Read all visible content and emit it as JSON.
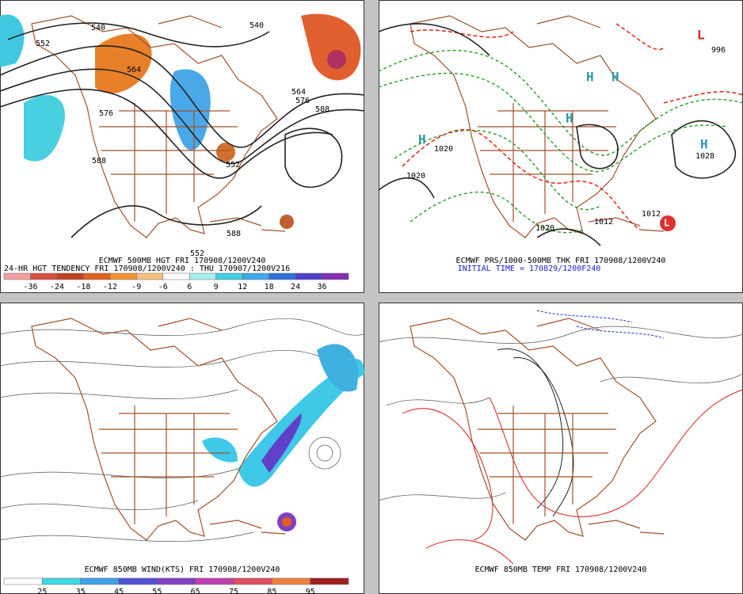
{
  "panels": [
    {
      "title": "ECMWF 500MB HGT FRI 170908/1200V240",
      "subtitle": "24-HR HGT TENDENCY FRI 170908/1200V240 : THU 170907/1200V216",
      "colorbar": [
        -36,
        -24,
        -18,
        -12,
        -9,
        -6,
        6,
        9,
        12,
        18,
        24,
        36
      ],
      "labels": [
        "552",
        "540",
        "564",
        "576",
        "588",
        "552",
        "540",
        "564",
        "576",
        "588",
        "588",
        "552"
      ]
    },
    {
      "title": "ECMWF PRS/1000-500MB THK FRI 170908/1200V240",
      "subtitle": "INITIAL TIME = 170829/1200F240",
      "labels": [
        "H",
        "H",
        "H",
        "H",
        "H",
        "L",
        "L",
        "1020",
        "1012",
        "1028",
        "996",
        "1020",
        "1012",
        "1020"
      ]
    },
    {
      "title": "ECMWF 850MB WIND(KTS) FRI 170908/1200V240",
      "colorbar": [
        25,
        35,
        45,
        55,
        65,
        75,
        85,
        95
      ]
    },
    {
      "title": "ECMWF 850MB TEMP FRI 170908/1200V240"
    }
  ]
}
